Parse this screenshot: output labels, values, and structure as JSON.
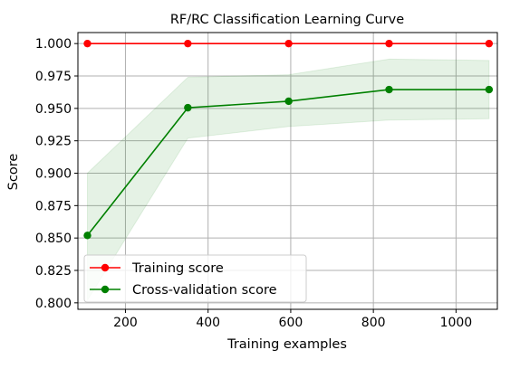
{
  "chart_data": {
    "type": "line",
    "title": "RF/RC Classification Learning Curve",
    "xlabel": "Training examples",
    "ylabel": "Score",
    "xlim": [
      85,
      1100
    ],
    "ylim": [
      0.795,
      1.0085
    ],
    "x_ticks": [
      200,
      400,
      600,
      800,
      1000
    ],
    "x_tick_labels": [
      "200",
      "400",
      "600",
      "800",
      "1000"
    ],
    "y_ticks": [
      0.8,
      0.825,
      0.85,
      0.875,
      0.9,
      0.925,
      0.95,
      0.975,
      1.0
    ],
    "y_tick_labels": [
      "0.800",
      "0.825",
      "0.850",
      "0.875",
      "0.900",
      "0.925",
      "0.950",
      "0.975",
      "1.000"
    ],
    "grid": true,
    "legend_position": "lower-left",
    "x": [
      108,
      351,
      595,
      838,
      1080
    ],
    "series": [
      {
        "name": "Training score",
        "color": "#ff0000",
        "values": [
          1.0,
          1.0,
          1.0,
          1.0,
          1.0
        ],
        "band_lower": [
          1.0,
          1.0,
          1.0,
          1.0,
          1.0
        ],
        "band_upper": [
          1.0,
          1.0,
          1.0,
          1.0,
          1.0
        ]
      },
      {
        "name": "Cross-validation score",
        "color": "#008000",
        "band_color": "#008000",
        "values": [
          0.852,
          0.9505,
          0.9555,
          0.9645,
          0.9645
        ],
        "band_lower": [
          0.802,
          0.927,
          0.936,
          0.941,
          0.942
        ],
        "band_upper": [
          0.9,
          0.974,
          0.976,
          0.988,
          0.987
        ]
      }
    ]
  }
}
